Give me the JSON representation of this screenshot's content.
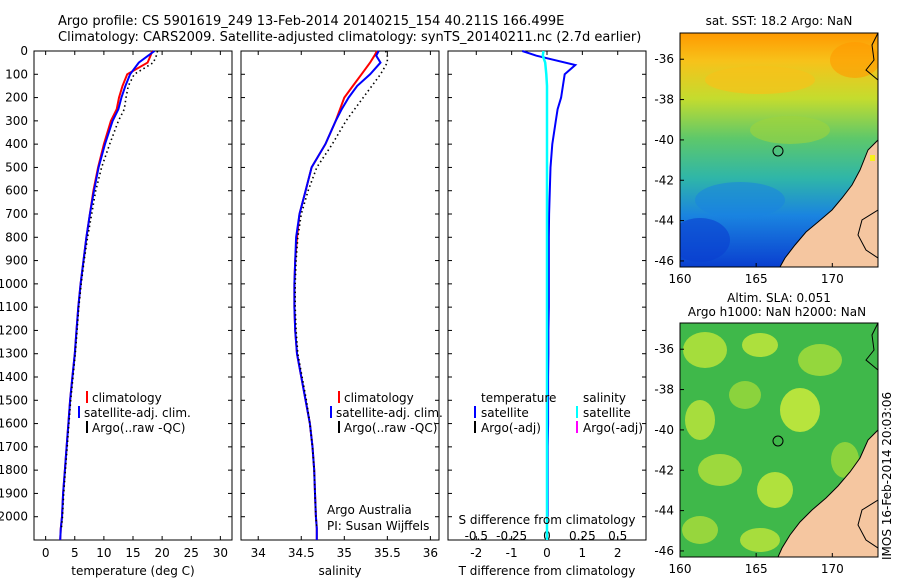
{
  "header": {
    "line1": "Argo profile: CS 5901619_249 13-Feb-2014 20140215_154 40.211S 166.499E",
    "line2": "Climatology: CARS2009. Satellite-adjusted climatology: synTS_20140211.nc (2.7d earlier)"
  },
  "depth_ticks": [
    "0",
    "100",
    "200",
    "300",
    "400",
    "500",
    "600",
    "700",
    "800",
    "900",
    "1000",
    "1100",
    "1200",
    "1300",
    "1400",
    "1500",
    "1600",
    "1700",
    "1800",
    "1900",
    "2000"
  ],
  "colors": {
    "climatology": "#ff0000",
    "satellite": "#0000ff",
    "argo": "#000000",
    "sal_sat": "#00ffff",
    "sal_argo": "#ff00ff",
    "land": "#f5c6a0"
  },
  "panels": {
    "temperature": {
      "xlabel": "temperature (deg C)",
      "xticks": [
        "0",
        "5",
        "10",
        "15",
        "20",
        "25",
        "30"
      ],
      "legend": [
        "climatology",
        "satellite-adj. clim.",
        "Argo(..raw -QC)"
      ]
    },
    "salinity": {
      "xlabel": "salinity",
      "xticks": [
        "34",
        "34.5",
        "35",
        "35.5",
        "36"
      ],
      "legend": [
        "climatology",
        "satellite-adj. clim.",
        "Argo(..raw -QC)"
      ],
      "note1": "Argo Australia",
      "note2": "PI: Susan Wijffels"
    },
    "difference": {
      "xlabel": "T difference from climatology",
      "top_label": "S difference from climatology",
      "xticks_s": [
        "-0.5",
        "-0.25",
        "0",
        "0.25",
        "0.5"
      ],
      "xticks_t": [
        "-2",
        "-1",
        "0",
        "1",
        "2"
      ],
      "legend_t_title": "temperature",
      "legend_t": [
        "satellite",
        "Argo(-adj)"
      ],
      "legend_s_title": "salinity",
      "legend_s": [
        "satellite",
        "Argo(-adj)"
      ]
    }
  },
  "maps": {
    "sst": {
      "title": "sat. SST: 18.2 Argo: NaN",
      "yticks": [
        "-36",
        "-38",
        "-40",
        "-42",
        "-44",
        "-46"
      ],
      "xticks": [
        "160",
        "165",
        "170"
      ]
    },
    "sla": {
      "title1": "Altim. SLA: 0.051",
      "title2": "Argo h1000: NaN h2000: NaN",
      "yticks": [
        "-36",
        "-38",
        "-40",
        "-42",
        "-44",
        "-46"
      ],
      "xticks": [
        "160",
        "165",
        "170"
      ]
    }
  },
  "side_text": "IMOS 16-Feb-2014 20:03:06",
  "chart_data": [
    {
      "type": "line",
      "title": "",
      "xlabel": "temperature (deg C)",
      "ylabel": "",
      "xlim": [
        -2,
        32
      ],
      "ylim": [
        2100,
        0
      ],
      "legend": "bottom-center",
      "series": [
        {
          "name": "climatology",
          "x": [
            18.3,
            18.0,
            17.5,
            14.0,
            13.2,
            12.6,
            12.2,
            11.2,
            10.0,
            9.0,
            8.2,
            7.6,
            7.0,
            6.5,
            6.0,
            5.6,
            5.3,
            5.0,
            4.6,
            4.2,
            3.9,
            3.6,
            3.3,
            3.0,
            2.8,
            2.6,
            2.5
          ],
          "y": [
            0,
            20,
            50,
            100,
            150,
            200,
            250,
            300,
            400,
            500,
            600,
            700,
            800,
            900,
            1000,
            1100,
            1200,
            1300,
            1400,
            1500,
            1600,
            1700,
            1800,
            1900,
            2000,
            2050,
            2100
          ]
        },
        {
          "name": "satellite-adj. clim.",
          "x": [
            18.7,
            17.6,
            16.0,
            14.5,
            13.7,
            13.0,
            12.5,
            11.5,
            10.2,
            9.1,
            8.3,
            7.6,
            7.0,
            6.5,
            6.0,
            5.6,
            5.3,
            5.0,
            4.6,
            4.2,
            3.9,
            3.6,
            3.3,
            3.0,
            2.8,
            2.6,
            2.5
          ],
          "y": [
            0,
            20,
            50,
            100,
            150,
            200,
            250,
            300,
            400,
            500,
            600,
            700,
            800,
            900,
            1000,
            1100,
            1200,
            1300,
            1400,
            1500,
            1600,
            1700,
            1800,
            1900,
            2000,
            2050,
            2100
          ]
        },
        {
          "name": "Argo(..raw -QC)",
          "x": [
            19.2,
            19.0,
            18.5,
            15.2,
            14.2,
            13.8,
            13.5,
            12.5,
            11.0,
            9.6,
            8.6,
            7.9,
            7.2,
            6.6,
            6.1,
            5.7,
            5.4,
            5.1,
            4.7,
            4.3,
            4.0,
            3.7,
            3.4,
            3.1,
            2.9,
            2.7
          ],
          "y": [
            0,
            20,
            50,
            100,
            150,
            200,
            250,
            300,
            400,
            500,
            600,
            700,
            800,
            900,
            1000,
            1100,
            1200,
            1300,
            1400,
            1500,
            1600,
            1700,
            1800,
            1900,
            2000,
            2050
          ]
        }
      ]
    },
    {
      "type": "line",
      "title": "",
      "xlabel": "salinity",
      "ylabel": "",
      "xlim": [
        33.8,
        36.1
      ],
      "ylim": [
        2100,
        0
      ],
      "legend": "bottom-center",
      "series": [
        {
          "name": "climatology",
          "x": [
            35.38,
            35.35,
            35.3,
            35.2,
            35.1,
            35.0,
            34.95,
            34.9,
            34.78,
            34.62,
            34.55,
            34.48,
            34.45,
            34.43,
            34.42,
            34.42,
            34.43,
            34.45,
            34.5,
            34.55,
            34.6,
            34.63,
            34.65,
            34.66,
            34.67,
            34.68,
            34.68
          ],
          "y": [
            0,
            20,
            50,
            100,
            150,
            200,
            250,
            300,
            400,
            500,
            600,
            700,
            800,
            900,
            1000,
            1100,
            1200,
            1300,
            1400,
            1500,
            1600,
            1700,
            1800,
            1900,
            2000,
            2050,
            2100
          ]
        },
        {
          "name": "satellite-adj. clim.",
          "x": [
            35.4,
            35.37,
            35.42,
            35.3,
            35.15,
            35.05,
            34.97,
            34.9,
            34.78,
            34.62,
            34.55,
            34.48,
            34.44,
            34.43,
            34.42,
            34.42,
            34.43,
            34.45,
            34.5,
            34.55,
            34.6,
            34.63,
            34.65,
            34.66,
            34.67,
            34.68,
            34.68
          ],
          "y": [
            0,
            20,
            50,
            100,
            150,
            200,
            250,
            300,
            400,
            500,
            600,
            700,
            800,
            900,
            1000,
            1100,
            1200,
            1300,
            1400,
            1500,
            1600,
            1700,
            1800,
            1900,
            2000,
            2050,
            2100
          ]
        },
        {
          "name": "Argo(..raw -QC)",
          "x": [
            35.48,
            35.5,
            35.5,
            35.42,
            35.32,
            35.22,
            35.12,
            35.02,
            34.86,
            34.68,
            34.58,
            34.5,
            34.46,
            34.44,
            34.43,
            34.43,
            34.44,
            34.46,
            34.51,
            34.56,
            34.6,
            34.63,
            34.65,
            34.66,
            34.67,
            34.68
          ],
          "y": [
            0,
            20,
            50,
            100,
            150,
            200,
            250,
            300,
            400,
            500,
            600,
            700,
            800,
            900,
            1000,
            1100,
            1200,
            1300,
            1400,
            1500,
            1600,
            1700,
            1800,
            1900,
            2000,
            2050
          ]
        }
      ]
    },
    {
      "type": "line",
      "title": "",
      "xlabel": "T difference from climatology",
      "ylabel": "",
      "xlim": [
        -2.8,
        2.8
      ],
      "ylim": [
        2100,
        0
      ],
      "legend": "bottom-center",
      "series": [
        {
          "name": "satellite",
          "x": [
            -0.7,
            -0.3,
            0.8,
            0.5,
            0.45,
            0.4,
            0.3,
            0.25,
            0.15,
            0.1,
            0.08,
            0.06,
            0.05,
            0.05,
            0.05,
            0.05,
            0.04,
            0.04,
            0.03,
            0.03,
            0.03,
            0.02,
            0.02,
            0.02,
            0.02
          ],
          "y": [
            0,
            20,
            60,
            100,
            150,
            200,
            250,
            300,
            400,
            500,
            600,
            700,
            800,
            900,
            1000,
            1100,
            1200,
            1300,
            1400,
            1500,
            1600,
            1700,
            1800,
            1900,
            2000
          ]
        },
        {
          "name": "satellite",
          "x": [
            -0.1,
            -0.12,
            -0.05,
            -0.02,
            0.0,
            0.0,
            0.0,
            0.0,
            0.0,
            0.0,
            0.0,
            0.0,
            0.0,
            0.0,
            0.0,
            0.0,
            0.0,
            0.0,
            0.0,
            0.0,
            0.0,
            0.0,
            0.0,
            0.0,
            0.0,
            0.0
          ],
          "y": [
            0,
            20,
            50,
            100,
            150,
            200,
            250,
            300,
            400,
            500,
            600,
            700,
            800,
            900,
            1000,
            1100,
            1200,
            1300,
            1400,
            1500,
            1600,
            1700,
            1800,
            1900,
            2000,
            2100
          ]
        }
      ]
    }
  ]
}
